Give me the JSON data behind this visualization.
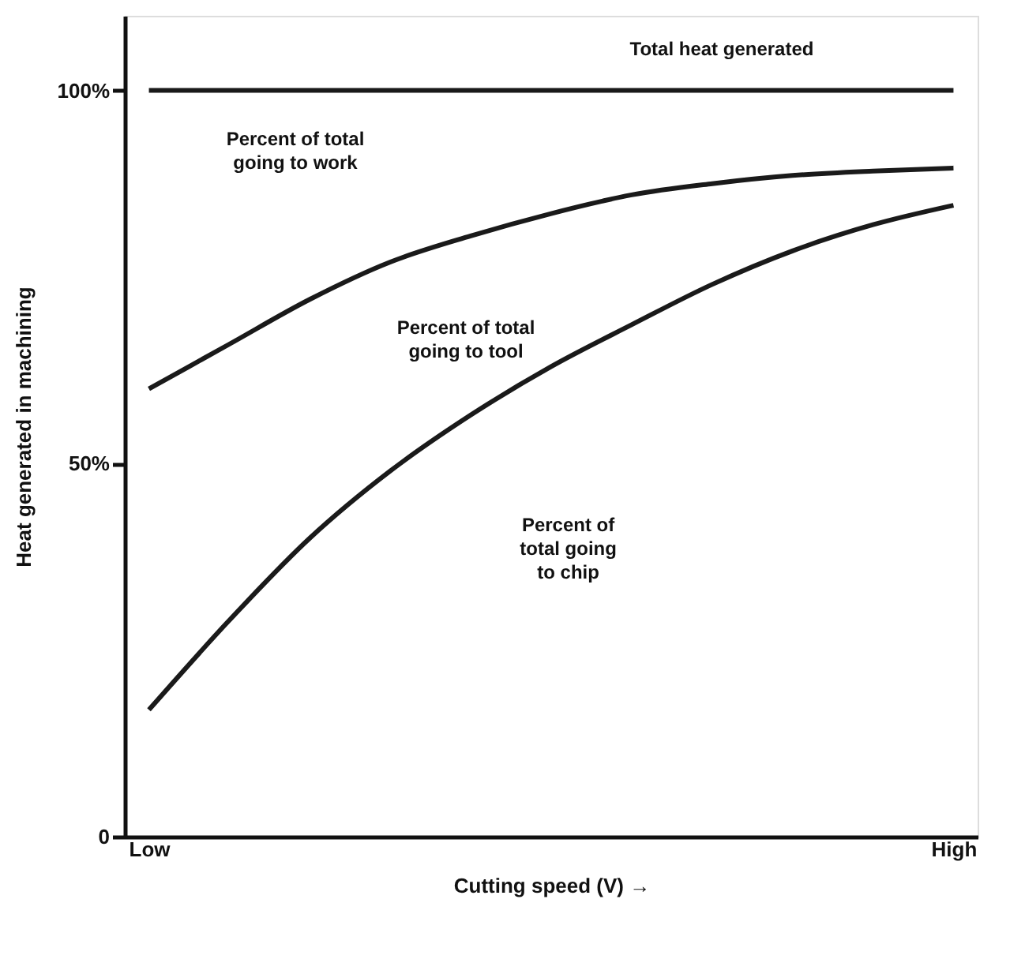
{
  "chart_data": {
    "type": "line",
    "xlabel": "Cutting speed (V) →",
    "ylabel": "Heat generated in machining",
    "categories": [
      "Low",
      null,
      null,
      null,
      null,
      null,
      null,
      null,
      null,
      null,
      "High"
    ],
    "ylim": [
      0,
      110
    ],
    "yticks": [
      {
        "value": 0,
        "label": "0"
      },
      {
        "value": 50,
        "label": "50%"
      },
      {
        "value": 100,
        "label": "100%"
      }
    ],
    "grid": false,
    "marker": "none",
    "line_style": "solid",
    "series": [
      {
        "color": "#1a1a1a",
        "values": [
          100,
          100,
          100,
          100,
          100,
          100,
          100,
          100,
          100,
          100,
          100
        ]
      },
      {
        "color": "#1a1a1a",
        "values": [
          60,
          66,
          72,
          77,
          80.5,
          83.5,
          86,
          87.5,
          88.6,
          89.2,
          89.6
        ]
      },
      {
        "color": "#1a1a1a",
        "values": [
          17,
          29,
          40,
          49,
          56.5,
          63,
          68.6,
          74,
          78.5,
          82,
          84.6
        ]
      }
    ],
    "annotations": [
      "Total heat generated",
      "Percent of total\ngoing to work",
      "Percent of total\ngoing to tool",
      "Percent of\ntotal going\nto chip"
    ]
  }
}
